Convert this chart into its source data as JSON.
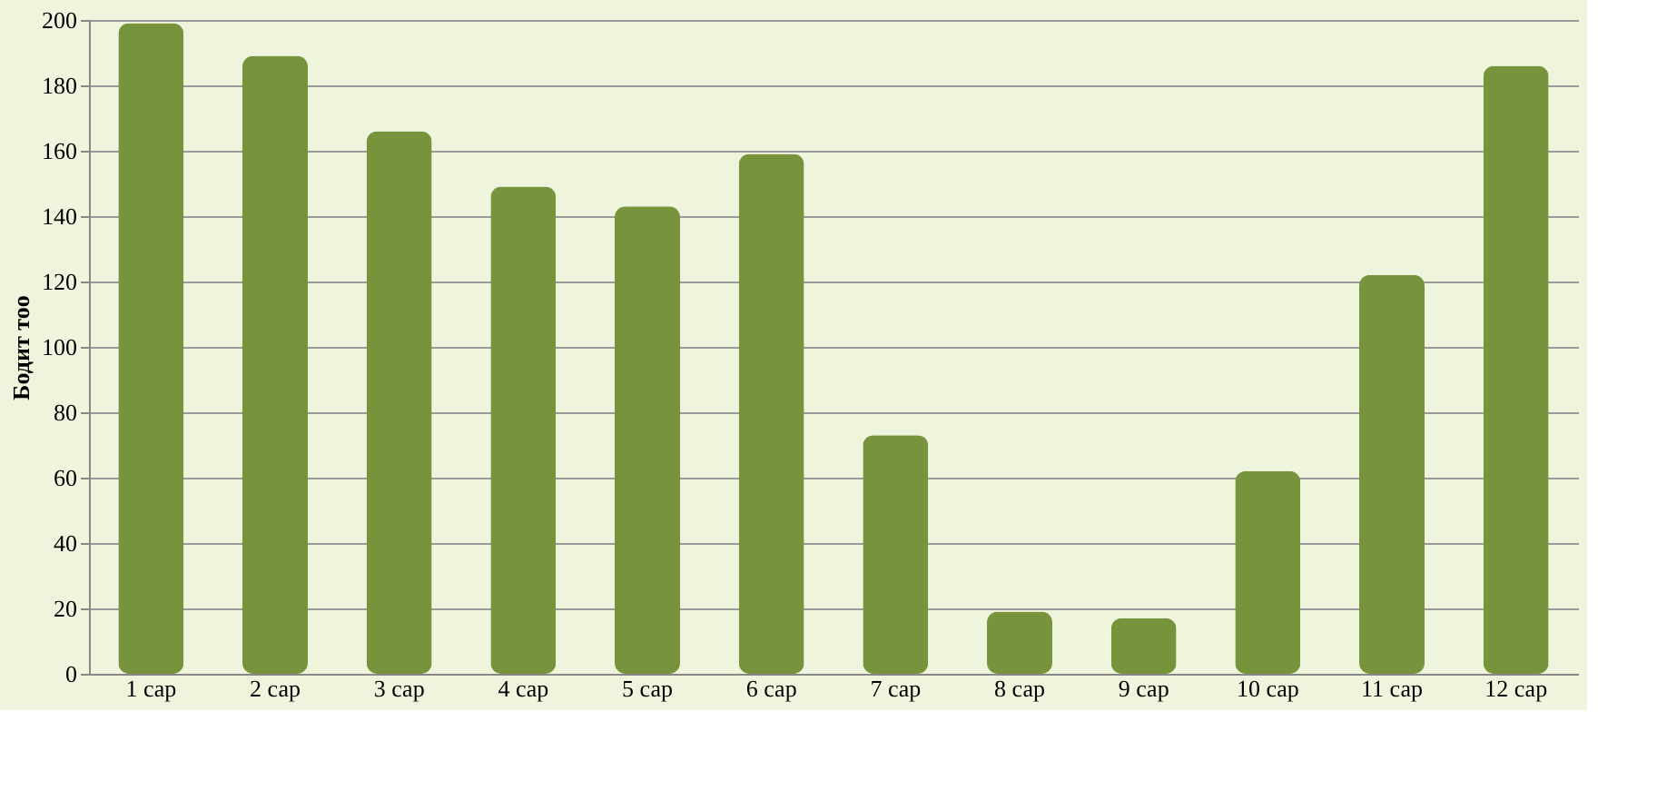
{
  "chart_data": {
    "type": "bar",
    "ylabel": "Бодит тоо",
    "categories": [
      "1 сар",
      "2 сар",
      "3 сар",
      "4 сар",
      "5 сар",
      "6 сар",
      "7 сар",
      "8 сар",
      "9 сар",
      "10 сар",
      "11 сар",
      "12 сар"
    ],
    "values": [
      199,
      189,
      166,
      149,
      143,
      159,
      73,
      19,
      17,
      62,
      122,
      186
    ],
    "color": "#77933c",
    "ylim": [
      0,
      200
    ],
    "yticks": [
      0,
      20,
      40,
      60,
      80,
      100,
      120,
      140,
      160,
      180,
      200
    ],
    "grid": "y"
  }
}
